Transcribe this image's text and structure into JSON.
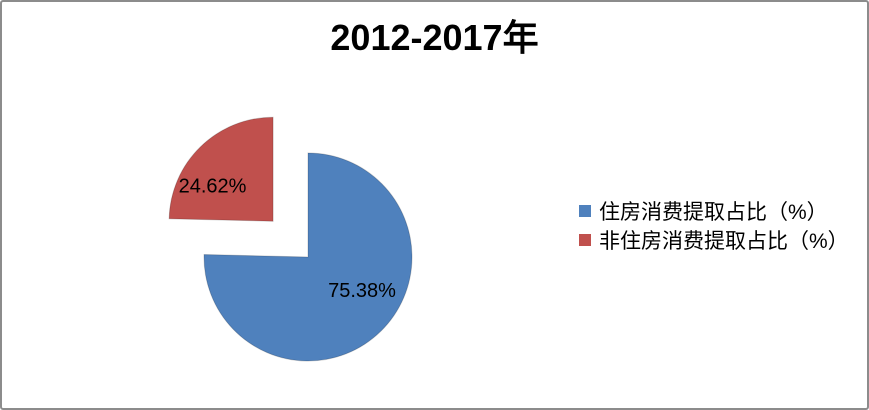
{
  "frame": {
    "background": "#ffffff",
    "border_color": "#8c8c8c"
  },
  "chart_data": {
    "type": "pie",
    "title": "2012-2017年",
    "categories": [
      "住房消费提取占比（%）",
      "非住房消费提取占比（%）"
    ],
    "values": [
      75.38,
      24.62
    ],
    "data_labels": [
      "75.38%",
      "24.62%"
    ],
    "colors": [
      "#4f81bd",
      "#c0504d"
    ],
    "start_angle_deg": 0,
    "direction": "clockwise",
    "exploded": [
      false,
      true
    ],
    "legend_position": "middle-right",
    "data_label_position": "inside",
    "label_color": "#000000",
    "title_color": "#000000",
    "plot_background": "#ffffff",
    "grid": false
  }
}
